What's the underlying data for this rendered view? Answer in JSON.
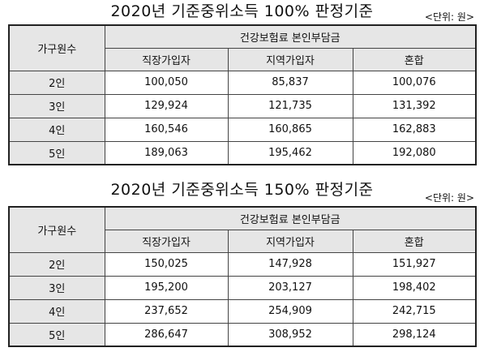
{
  "tables": [
    {
      "title": "2020년 기준중위소득 100% 판정기준",
      "unit": "<단위: 원>",
      "row_header": "가구원수",
      "group_header": "건강보험료 본인부담금",
      "columns": [
        "직장가입자",
        "지역가입자",
        "혼합"
      ],
      "rows": [
        {
          "label": "2인",
          "values": [
            "100,050",
            "85,837",
            "100,076"
          ]
        },
        {
          "label": "3인",
          "values": [
            "129,924",
            "121,735",
            "131,392"
          ]
        },
        {
          "label": "4인",
          "values": [
            "160,546",
            "160,865",
            "162,883"
          ]
        },
        {
          "label": "5인",
          "values": [
            "189,063",
            "195,462",
            "192,080"
          ]
        }
      ]
    },
    {
      "title": "2020년 기준중위소득 150% 판정기준",
      "unit": "<단위: 원>",
      "row_header": "가구원수",
      "group_header": "건강보험료 본인부담금",
      "columns": [
        "직장가입자",
        "지역가입자",
        "혼합"
      ],
      "rows": [
        {
          "label": "2인",
          "values": [
            "150,025",
            "147,928",
            "151,927"
          ]
        },
        {
          "label": "3인",
          "values": [
            "195,200",
            "203,127",
            "198,402"
          ]
        },
        {
          "label": "4인",
          "values": [
            "237,652",
            "254,909",
            "242,715"
          ]
        },
        {
          "label": "5인",
          "values": [
            "286,647",
            "308,952",
            "298,124"
          ]
        }
      ]
    }
  ]
}
